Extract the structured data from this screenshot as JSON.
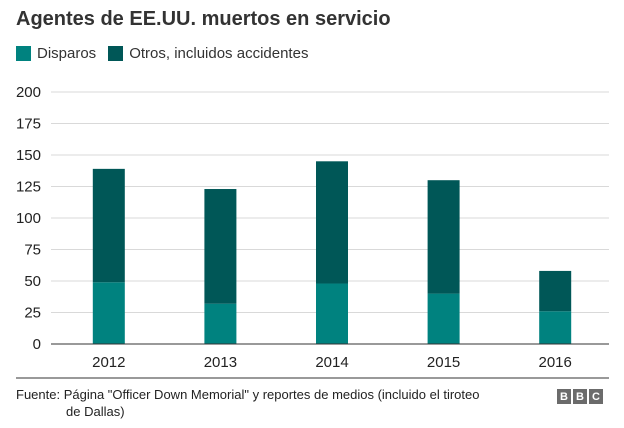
{
  "title": "Agentes de EE.UU. muertos en servicio",
  "colors": {
    "disparos": "#00827f",
    "otros": "#005757",
    "grid": "#d9d9d9",
    "axis": "#333333"
  },
  "chart_data": {
    "type": "bar",
    "stacked": true,
    "categories": [
      "2012",
      "2013",
      "2014",
      "2015",
      "2016"
    ],
    "series": [
      {
        "name": "Disparos",
        "values": [
          49,
          32,
          48,
          40,
          26
        ]
      },
      {
        "name": "Otros, incluidos accidentes",
        "values": [
          90,
          91,
          97,
          90,
          32
        ]
      }
    ],
    "ylim": [
      0,
      200
    ],
    "yticks": [
      0,
      25,
      50,
      75,
      100,
      125,
      150,
      175,
      200
    ],
    "title": "Agentes de EE.UU. muertos en servicio",
    "xlabel": "",
    "ylabel": "",
    "grid": true,
    "legend": "top-left"
  },
  "footer": {
    "source": "Fuente: Página \"Officer Down Memorial\" y reportes de medios (incluido el tiroteo",
    "source_cont": "de Dallas)"
  },
  "brand": {
    "letters": [
      "B",
      "B",
      "C"
    ]
  }
}
